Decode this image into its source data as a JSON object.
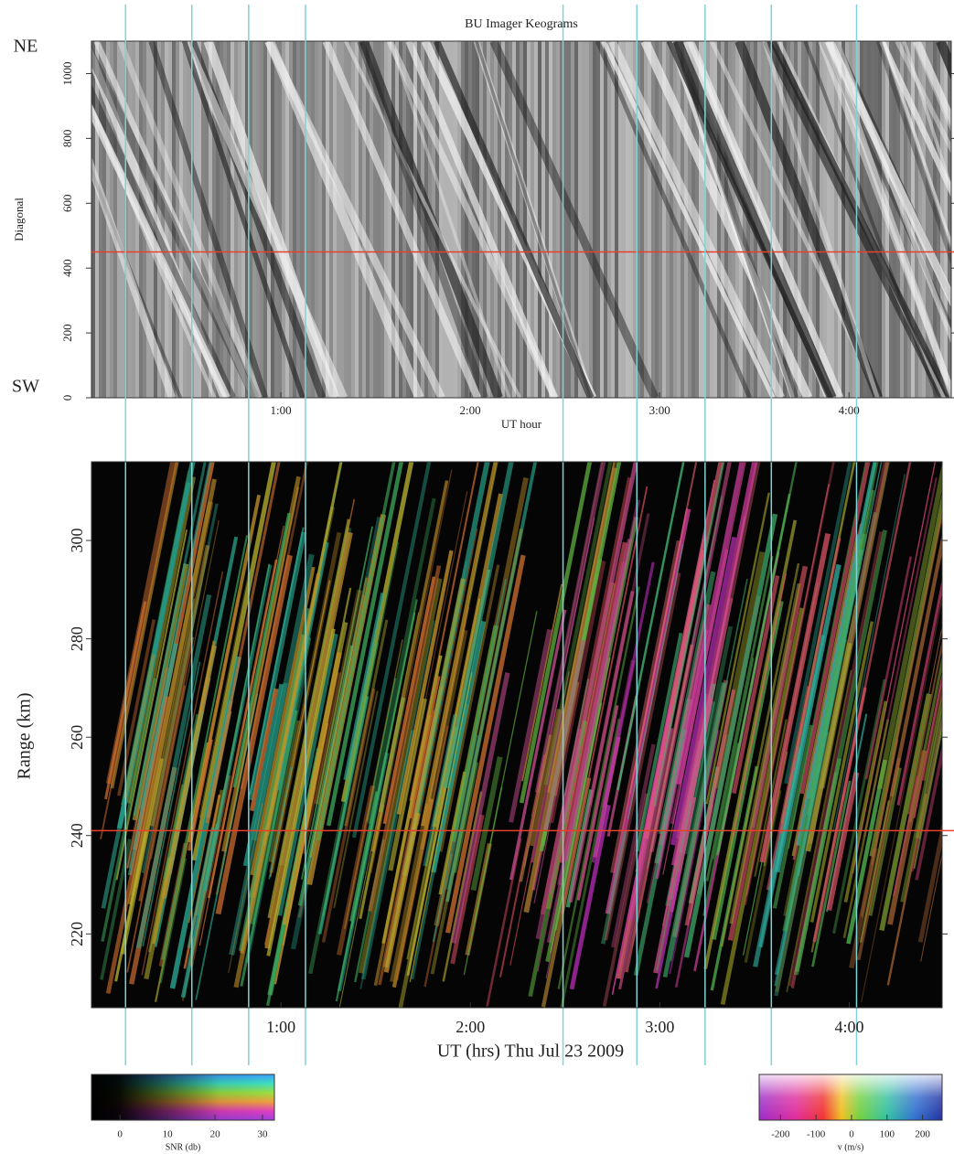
{
  "chart_data": [
    {
      "type": "keogram",
      "title": "BU Imager Keograms",
      "ylabel": "Diagonal",
      "xlabel": "UT hour",
      "top_label": "NE",
      "bottom_label": "SW",
      "xlim": [
        0,
        4.54
      ],
      "xticks": [
        {
          "value": 1,
          "label": "1:00"
        },
        {
          "value": 2,
          "label": "2:00"
        },
        {
          "value": 3,
          "label": "3:00"
        },
        {
          "value": 4,
          "label": "4:00"
        }
      ],
      "ylim": [
        0,
        1100
      ],
      "yticks": [
        0,
        200,
        400,
        600,
        800,
        1000
      ],
      "hline": 450,
      "hline_color": "#e8402a",
      "vlines": [
        0.18,
        0.53,
        0.83,
        1.13,
        2.49,
        2.88,
        3.24,
        3.59,
        4.04
      ],
      "vline_color": "#7fd3d6"
    },
    {
      "type": "rti",
      "ylabel": "Range (km)",
      "xlabel": "UT (hrs) Thu Jul 23 2009",
      "xlim": [
        0,
        4.49
      ],
      "xticks": [
        {
          "value": 1,
          "label": "1:00"
        },
        {
          "value": 2,
          "label": "2:00"
        },
        {
          "value": 3,
          "label": "3:00"
        },
        {
          "value": 4,
          "label": "4:00"
        }
      ],
      "ylim": [
        205,
        316
      ],
      "yticks": [
        220,
        240,
        260,
        280,
        300
      ],
      "hline": 241,
      "hline_color": "#e8402a"
    },
    {
      "type": "colorbar",
      "xlabel": "SNR (db)",
      "xlim": [
        -6,
        32.5
      ],
      "xticks": [
        0,
        10,
        20,
        30
      ]
    },
    {
      "type": "colorbar",
      "xlabel": "v (m/s)",
      "xlim": [
        -260,
        255
      ],
      "xticks": [
        -200,
        -100,
        0,
        100,
        200
      ]
    }
  ]
}
